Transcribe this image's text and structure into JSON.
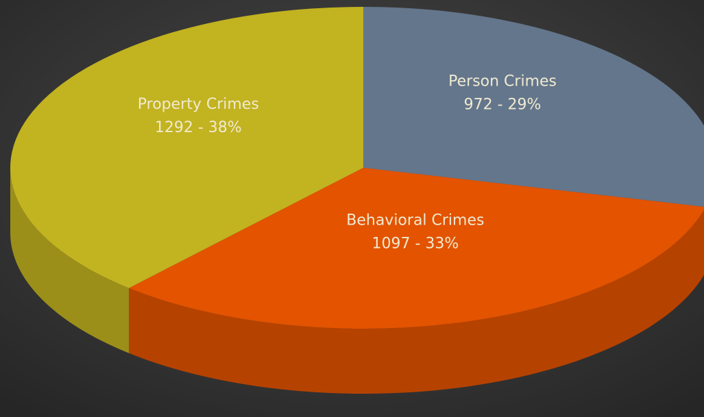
{
  "chart_data": {
    "type": "pie",
    "categories": [
      "Person Crimes",
      "Behavioral Crimes",
      "Property Crimes"
    ],
    "values": [
      972,
      1097,
      1292
    ],
    "value_labels": [
      "972 -  29%",
      "1097 - 33%",
      "1292 -  38%"
    ],
    "colors": [
      "#64768c",
      "#e35300",
      "#c2b320"
    ]
  }
}
